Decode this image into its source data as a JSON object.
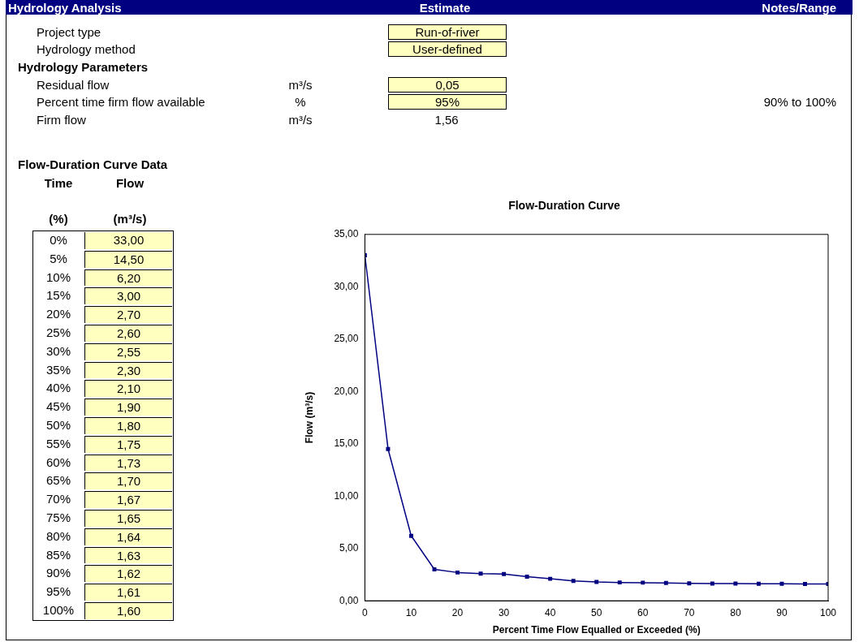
{
  "chart_data": [
    {
      "type": "other",
      "title": "Hydrology Analysis",
      "annotations": [
        "Estimate",
        "Notes/Range",
        "Project type",
        "Run-of-river",
        "Hydrology method",
        "User-defined",
        "Hydrology Parameters",
        "Residual flow",
        "m³/s",
        "0,05",
        "Percent time firm flow available",
        "%",
        "95%",
        "90% to 100%",
        "Firm flow",
        "m³/s",
        "1,56",
        "Flow-Duration Curve Data",
        "Time",
        "Flow",
        "(%)",
        "(m³/s)"
      ]
    },
    {
      "type": "heatmap",
      "categories": [
        null
      ],
      "y_categories": [
        "0%",
        "5%",
        "10%",
        "15%",
        "20%",
        "25%",
        "30%",
        "35%",
        "40%",
        "45%",
        "50%",
        "55%",
        "60%",
        "65%",
        "70%",
        "75%",
        "80%",
        "85%",
        "90%",
        "95%",
        "100%"
      ],
      "cells": [
        [
          33
        ],
        [
          14.5
        ],
        [
          6.2
        ],
        [
          3
        ],
        [
          2.7
        ],
        [
          2.6
        ],
        [
          2.55
        ],
        [
          2.3
        ],
        [
          2.1
        ],
        [
          1.9
        ],
        [
          1.8
        ],
        [
          1.75
        ],
        [
          1.73
        ],
        [
          1.7
        ],
        [
          1.67
        ],
        [
          1.65
        ],
        [
          1.64
        ],
        [
          1.63
        ],
        [
          1.62
        ],
        [
          1.61
        ],
        [
          1.6
        ]
      ],
      "cell_labels": [
        [
          "33,00"
        ],
        [
          "14,50"
        ],
        [
          "6,20"
        ],
        [
          "3,00"
        ],
        [
          "2,70"
        ],
        [
          "2,60"
        ],
        [
          "2,55"
        ],
        [
          "2,30"
        ],
        [
          "2,10"
        ],
        [
          "1,90"
        ],
        [
          "1,80"
        ],
        [
          "1,75"
        ],
        [
          "1,73"
        ],
        [
          "1,70"
        ],
        [
          "1,67"
        ],
        [
          "1,65"
        ],
        [
          "1,64"
        ],
        [
          "1,63"
        ],
        [
          "1,62"
        ],
        [
          "1,61"
        ],
        [
          "1,60"
        ]
      ]
    },
    {
      "type": "line",
      "title": "Flow-Duration Curve",
      "xlabel": "Percent Time Flow Equalled or Exceeded (%)",
      "ylabel": "Flow (m³/s)",
      "x": [
        0,
        5,
        10,
        15,
        20,
        25,
        30,
        35,
        40,
        45,
        50,
        55,
        60,
        65,
        70,
        75,
        80,
        85,
        90,
        95,
        100
      ],
      "series": [
        {
          "color": "#000080",
          "values": [
            33,
            14.5,
            6.2,
            3,
            2.7,
            2.6,
            2.55,
            2.3,
            2.1,
            1.9,
            1.8,
            1.75,
            1.73,
            1.7,
            1.67,
            1.65,
            1.64,
            1.63,
            1.62,
            1.61,
            1.6
          ]
        }
      ],
      "xlim": [
        0,
        100
      ],
      "xticks": [
        0,
        10,
        20,
        30,
        40,
        50,
        60,
        70,
        80,
        90,
        100
      ],
      "ylim": [
        0,
        35
      ],
      "yticks": [
        {
          "value": 0,
          "label": "0,00"
        },
        {
          "value": 5,
          "label": "5,00"
        },
        {
          "value": 10,
          "label": "10,00"
        },
        {
          "value": 15,
          "label": "15,00"
        },
        {
          "value": 20,
          "label": "20,00"
        },
        {
          "value": 25,
          "label": "25,00"
        },
        {
          "value": 30,
          "label": "30,00"
        },
        {
          "value": 35,
          "label": "35,00"
        }
      ],
      "grid": false,
      "legend": false,
      "marker": "square",
      "line_style": "solid"
    }
  ]
}
